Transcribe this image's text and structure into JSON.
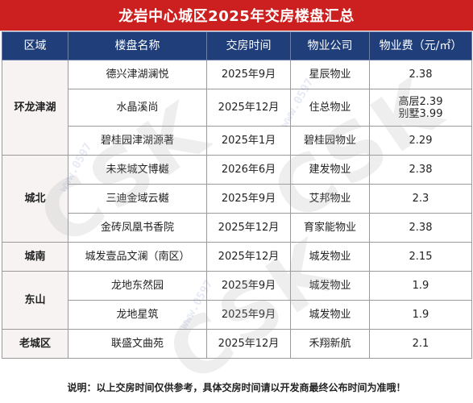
{
  "title": "龙岩中心城区2025年交房楼盘汇总",
  "headers": [
    "区域",
    "楼盘名称",
    "交房时间",
    "物业公司",
    "物业费（元/㎡）"
  ],
  "groups": [
    {
      "region": "环龙津湖",
      "rows": [
        {
          "name": "德兴津湖澜悦",
          "date": "2025年9月",
          "company": "星辰物业",
          "fee": [
            "2.38"
          ]
        },
        {
          "name": "水晶溪尚",
          "date": "2025年12月",
          "company": "住总物业",
          "fee": [
            "高层2.39",
            "别墅3.99"
          ]
        },
        {
          "name": "碧桂园津湖源著",
          "date": "2025年1月",
          "company": "碧桂园物业",
          "fee": [
            "2.29"
          ]
        }
      ]
    },
    {
      "region": "城北",
      "rows": [
        {
          "name": "未来城文博樾",
          "date": "2026年6月",
          "company": "建发物业",
          "fee": [
            "2.38"
          ]
        },
        {
          "name": "三迪金域云樾",
          "date": "2025年9月",
          "company": "艾邦物业",
          "fee": [
            "2.3"
          ]
        },
        {
          "name": "金砖凤凰书香院",
          "date": "2025年12月",
          "company": "育家能物业",
          "fee": [
            "2.38"
          ]
        }
      ]
    },
    {
      "region": "城南",
      "rows": [
        {
          "name": "城发壹品文澜（南区）",
          "date": "2025年12月",
          "company": "城发物业",
          "fee": [
            "2.15"
          ]
        }
      ]
    },
    {
      "region": "东山",
      "rows": [
        {
          "name": "龙地东然园",
          "date": "2025年9月",
          "company": "城发物业",
          "fee": [
            "1.9"
          ]
        },
        {
          "name": "龙地星筑",
          "date": "2025年9月",
          "company": "城发物业",
          "fee": [
            "1.9"
          ]
        }
      ]
    },
    {
      "region": "老城区",
      "rows": [
        {
          "name": "联盛文曲苑",
          "date": "2025年12月",
          "company": "禾翔新航",
          "fee": [
            "2.1"
          ]
        }
      ]
    }
  ],
  "footer": "说明：以上交房时间仅供参考，具体交房时间请以开发商最终公布时间为准哦！",
  "watermark": {
    "text": "CSK",
    "url": "www.0597"
  },
  "colors": {
    "title_bg": "#cc1f1f",
    "header_bg": "#1f3e7a"
  }
}
